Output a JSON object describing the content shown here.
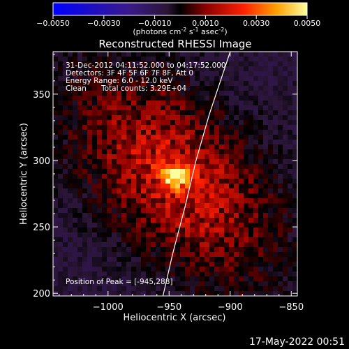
{
  "colorbar": {
    "ticks": [
      "-0.0050",
      "-0.0030",
      "-0.0010",
      "0.0010",
      "0.0030",
      "0.0050"
    ],
    "unit_parts": [
      "(photons cm",
      "-2",
      " s",
      "-1",
      " asec",
      "-2",
      ")"
    ]
  },
  "title": "Reconstructed RHESSI Image",
  "info": {
    "line1": "31-Dec-2012 04:11:52.000 to 04:17:52.000",
    "line2": "Detectors: 3F 4F 5F 6F 7F 8F, Att 0",
    "line3": "Energy Range: 6.0 - 12.0 keV",
    "line4_left": "Clean",
    "line4_right": "Total counts: 3.29E+04"
  },
  "peak_label": "Position of Peak = [-945,288]",
  "timestamp": "17-May-2022 00:51",
  "chart_data": {
    "type": "heatmap",
    "title": "Reconstructed RHESSI Image",
    "xlabel": "Heliocentric X (arcsec)",
    "ylabel": "Heliocentric Y (arcsec)",
    "xlim": [
      -1045,
      -845
    ],
    "ylim": [
      198,
      382
    ],
    "xticks": [
      -1000,
      -950,
      -900,
      -850
    ],
    "yticks": [
      200,
      250,
      300,
      350
    ],
    "xtick_labels": [
      "−1000",
      "−950",
      "−900",
      "−850"
    ],
    "ytick_labels": [
      "200",
      "250",
      "300",
      "350"
    ],
    "color_range": [
      -0.005,
      0.005
    ],
    "colormap": [
      "#0000ff",
      "#3a1a8a",
      "#2a1535",
      "#000000",
      "#8a0000",
      "#ff2000",
      "#ffa000",
      "#ffffa0"
    ],
    "peak": [
      -945,
      288
    ],
    "limb_curve": [
      [
        -955,
        198
      ],
      [
        -947,
        230
      ],
      [
        -937,
        265
      ],
      [
        -928,
        300
      ],
      [
        -917,
        335
      ],
      [
        -905,
        368
      ],
      [
        -900,
        382
      ]
    ]
  }
}
